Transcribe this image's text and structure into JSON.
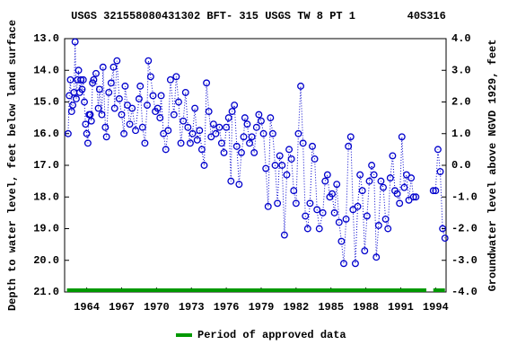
{
  "chart_data": {
    "type": "line",
    "title": "USGS 321558080431302 BFT- 315 USGS TW 8 PT 1        40S316",
    "y_label": "Depth to water level, feet below land surface",
    "y2_label": "Groundwater level above NGVD 1929, feet",
    "xlim": [
      1962.1,
      1994.9
    ],
    "xticks": [
      1964,
      1967,
      1970,
      1973,
      1976,
      1979,
      1982,
      1985,
      1988,
      1991,
      1994
    ],
    "ylim": [
      13,
      21
    ],
    "yticks": [
      {
        "value": 13,
        "label": "13.0"
      },
      {
        "value": 14,
        "label": "14.0"
      },
      {
        "value": 15,
        "label": "15.0"
      },
      {
        "value": 16,
        "label": "16.0"
      },
      {
        "value": 17,
        "label": "17.0"
      },
      {
        "value": 18,
        "label": "18.0"
      },
      {
        "value": 19,
        "label": "19.0"
      },
      {
        "value": 20,
        "label": "20.0"
      },
      {
        "value": 21,
        "label": "21.0"
      }
    ],
    "y2lim": [
      4,
      -4
    ],
    "y2ticks": [
      {
        "value": 4,
        "label": "4.0"
      },
      {
        "value": 3,
        "label": "3.0"
      },
      {
        "value": 2,
        "label": "2.0"
      },
      {
        "value": 1,
        "label": "1.0"
      },
      {
        "value": 0,
        "label": "0.0"
      },
      {
        "value": -1,
        "label": "-1.0"
      },
      {
        "value": -2,
        "label": "-2.0"
      },
      {
        "value": -3,
        "label": "-3.0"
      },
      {
        "value": -4,
        "label": "-4.0"
      }
    ],
    "series": [
      {
        "color": "#0000cc",
        "x": [
          1962.4,
          1962.5,
          1962.6,
          1962.7,
          1962.8,
          1962.9,
          1963.0,
          1963.1,
          1963.2,
          1963.3,
          1963.4,
          1963.5,
          1963.6,
          1963.7,
          1963.8,
          1963.9,
          1964.0,
          1964.1,
          1964.2,
          1964.3,
          1964.4,
          1964.5,
          1964.6,
          1964.8,
          1965.0,
          1965.1,
          1965.3,
          1965.4,
          1965.6,
          1965.7,
          1965.9,
          1966.1,
          1966.3,
          1966.4,
          1966.6,
          1966.8,
          1967.0,
          1967.2,
          1967.3,
          1967.5,
          1967.7,
          1967.9,
          1968.2,
          1968.5,
          1968.6,
          1968.8,
          1969.0,
          1969.2,
          1969.3,
          1969.5,
          1969.7,
          1969.9,
          1970.1,
          1970.3,
          1970.4,
          1970.6,
          1970.8,
          1971.0,
          1971.2,
          1971.5,
          1971.7,
          1971.9,
          1972.1,
          1972.3,
          1972.5,
          1972.7,
          1972.9,
          1973.1,
          1973.3,
          1973.5,
          1973.7,
          1973.9,
          1974.1,
          1974.3,
          1974.5,
          1974.7,
          1974.9,
          1975.1,
          1975.4,
          1975.6,
          1975.8,
          1976.0,
          1976.2,
          1976.4,
          1976.5,
          1976.7,
          1976.9,
          1977.1,
          1977.3,
          1977.5,
          1977.6,
          1977.8,
          1978.0,
          1978.2,
          1978.4,
          1978.6,
          1978.8,
          1979.0,
          1979.2,
          1979.4,
          1979.6,
          1979.8,
          1980.0,
          1980.2,
          1980.4,
          1980.6,
          1980.8,
          1981.0,
          1981.2,
          1981.4,
          1981.6,
          1981.8,
          1982.0,
          1982.2,
          1982.4,
          1982.6,
          1982.8,
          1983.0,
          1983.2,
          1983.4,
          1983.6,
          1983.8,
          1984.0,
          1984.3,
          1984.5,
          1984.7,
          1984.9,
          1985.1,
          1985.3,
          1985.5,
          1985.7,
          1985.9,
          1986.1,
          1986.3,
          1986.5,
          1986.7,
          1986.9,
          1987.1,
          1987.3,
          1987.5,
          1987.7,
          1987.9,
          1988.1,
          1988.3,
          1988.5,
          1988.7,
          1988.9,
          1989.1,
          1989.3,
          1989.5,
          1989.7,
          1989.9,
          1990.1,
          1990.3,
          1990.5,
          1990.7,
          1990.9,
          1991.1,
          1991.3,
          1991.5,
          1991.7,
          1991.9,
          1992.1,
          1992.3,
          1993.0,
          1993.8,
          1994.0,
          1994.2,
          1994.4,
          1994.6,
          1994.8
        ],
        "values": [
          16.0,
          14.8,
          14.3,
          15.3,
          15.1,
          14.7,
          13.1,
          14.9,
          14.3,
          14.0,
          14.7,
          14.3,
          14.6,
          14.3,
          15.0,
          15.7,
          16.0,
          16.3,
          15.4,
          15.4,
          15.6,
          14.4,
          14.3,
          14.1,
          15.2,
          14.6,
          15.4,
          13.9,
          15.8,
          16.1,
          14.7,
          14.4,
          13.9,
          15.2,
          13.7,
          14.9,
          15.4,
          16.0,
          14.5,
          15.1,
          15.7,
          15.2,
          15.9,
          14.9,
          14.5,
          15.8,
          16.3,
          15.1,
          13.7,
          14.2,
          14.8,
          15.3,
          15.2,
          15.5,
          14.8,
          16.0,
          16.5,
          15.9,
          14.3,
          15.4,
          14.2,
          15.0,
          16.3,
          15.6,
          14.7,
          15.8,
          16.3,
          16.0,
          15.2,
          16.2,
          15.9,
          16.5,
          17.0,
          14.4,
          15.3,
          16.1,
          15.7,
          16.0,
          15.8,
          16.3,
          16.6,
          15.8,
          15.5,
          17.5,
          15.3,
          15.1,
          16.4,
          17.6,
          16.6,
          16.1,
          15.5,
          15.7,
          16.3,
          16.1,
          16.6,
          15.8,
          15.4,
          15.6,
          16.0,
          17.1,
          18.3,
          15.5,
          16.0,
          17.0,
          18.2,
          16.7,
          17.0,
          19.2,
          17.3,
          16.5,
          16.8,
          17.8,
          18.2,
          16.0,
          14.5,
          16.3,
          18.6,
          19.0,
          18.2,
          16.4,
          16.8,
          18.4,
          19.0,
          18.5,
          17.5,
          17.3,
          18.0,
          17.9,
          18.5,
          17.6,
          18.8,
          19.4,
          20.1,
          18.7,
          16.4,
          16.1,
          18.4,
          20.1,
          18.3,
          17.3,
          17.8,
          19.7,
          18.6,
          17.5,
          17.0,
          17.3,
          19.9,
          18.9,
          17.5,
          17.7,
          18.7,
          19.0,
          17.4,
          16.7,
          17.8,
          17.9,
          18.2,
          16.1,
          17.7,
          17.3,
          18.1,
          17.4,
          18.0,
          18.0,
          null,
          17.8,
          17.8,
          16.5,
          17.2,
          19.0,
          19.3
        ]
      }
    ],
    "approved_periods": [
      {
        "start": 1962.3,
        "end": 1993.2
      },
      {
        "start": 1993.8,
        "end": 1994.8
      }
    ],
    "approved_color": "#009900",
    "legend_label": "Period of approved data"
  }
}
